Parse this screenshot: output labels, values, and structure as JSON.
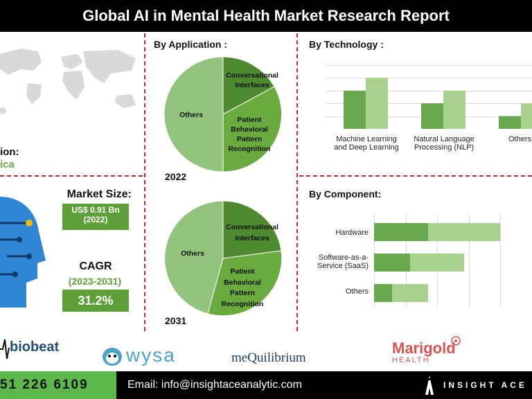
{
  "title": "Global AI in Mental Health Market Research Report",
  "region": {
    "label": "ion:",
    "value": "ica"
  },
  "market_size": {
    "label": "Market Size:",
    "value": "US$ 0.91 Bn",
    "year": "(2022)"
  },
  "cagr": {
    "label": "CAGR",
    "period": "(2023-2031)",
    "value": "31.2%"
  },
  "application": {
    "title": "By Application :",
    "pie_2022": {
      "year": "2022",
      "slices": [
        {
          "name": "Others",
          "value": 50
        },
        {
          "name": "Conversational Interfaces",
          "value": 14
        },
        {
          "name": "Patient Behavioral Pattern Recognition",
          "value": 36
        }
      ]
    },
    "pie_2031": {
      "year": "2031",
      "slices": [
        {
          "name": "Others",
          "value": 45
        },
        {
          "name": "Conversational Interfaces",
          "value": 16
        },
        {
          "name": "Patient Behavioral Pattern Recognition",
          "value": 39
        }
      ]
    },
    "labels": {
      "others": "Others",
      "conv_1": "Conversational",
      "conv_2": "Interfaces",
      "pat_1": "Patient",
      "pat_2": "Behavioral",
      "pat_3": "Pattern",
      "pat_4": "Recognition"
    }
  },
  "technology": {
    "title": "By Technology :",
    "chart_data": {
      "type": "bar",
      "categories": [
        "Machine Learning and Deep Learning",
        "Natural Language Processing (NLP)",
        "Others"
      ],
      "series": [
        {
          "values": [
            60,
            40,
            20
          ]
        },
        {
          "values": [
            80,
            60,
            40
          ]
        }
      ],
      "colors": [
        "#6aa84f",
        "#a9d18e"
      ]
    },
    "labels": [
      [
        "Machine Learning",
        "and Deep Learning"
      ],
      [
        "Natural Language",
        "Processing (NLP)"
      ],
      [
        "Others"
      ]
    ]
  },
  "component": {
    "title": "By Component:",
    "chart_data": {
      "type": "bar",
      "orientation": "horizontal",
      "categories": [
        "Hardware",
        "Software-as-a-Service (SaaS)",
        "Others"
      ],
      "series": [
        {
          "values": [
            78,
            52,
            26
          ]
        },
        {
          "values": [
            104,
            78,
            52
          ]
        }
      ],
      "colors": [
        "#6aa84f",
        "#a9d18e"
      ]
    },
    "labels": [
      [
        "Hardware"
      ],
      [
        "Software-as-a-",
        "Service (SaaS)"
      ],
      [
        "Others"
      ]
    ]
  },
  "logos": {
    "biobeat": "biobeat",
    "wysa": "wysa",
    "mequilibrium": "meQuilibrium",
    "marigold": "Marigold",
    "marigold_sub": "HEALTH"
  },
  "footer": {
    "phone": "51 226 6109",
    "email": "Email: info@insightaceanalytic.com",
    "brand": "INSIGHT ACE"
  },
  "colors": {
    "dark_green": "#5f9f3a",
    "mid_green": "#6aa84f",
    "light_green": "#a9d18e",
    "pie_light": "#93c47d",
    "pie_dark": "#4e8a2f",
    "pie_mid": "#6aab3f",
    "divider": "#c0292b"
  }
}
